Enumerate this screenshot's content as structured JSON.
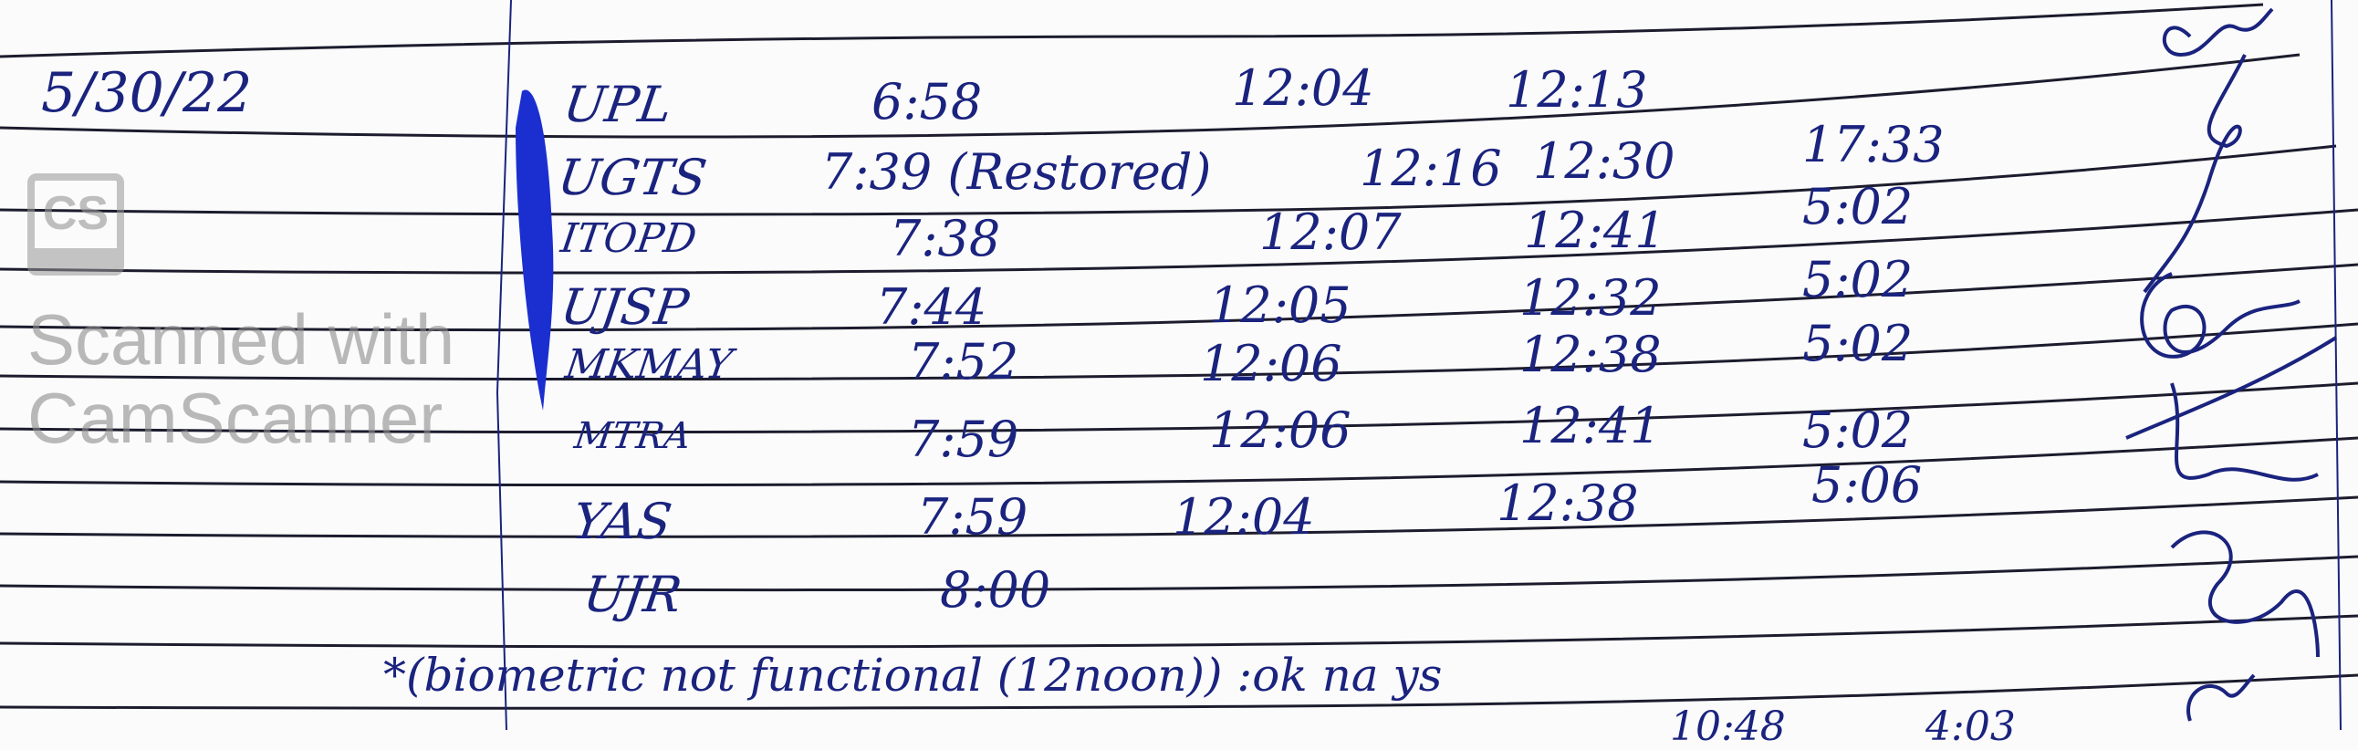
{
  "page": {
    "date": "5/30/22",
    "rows": [
      {
        "name": "UPL",
        "t1": "6:58",
        "t2": "12:04",
        "t3": "12:13",
        "t4": ""
      },
      {
        "name": "UGTS",
        "t1": "7:39 (Restored)",
        "t2": "12:16",
        "t3": "12:30",
        "t4": "17:33"
      },
      {
        "name": "ITOPD",
        "t1": "7:38",
        "t2": "12:07",
        "t3": "12:41",
        "t4": "5:02"
      },
      {
        "name": "UJSP",
        "t1": "7:44",
        "t2": "12:05",
        "t3": "12:32",
        "t4": "5:02"
      },
      {
        "name": "MKMAY",
        "t1": "7:52",
        "t2": "12:06",
        "t3": "12:38",
        "t4": "5:02"
      },
      {
        "name": "MTRA",
        "t1": "7:59",
        "t2": "12:06",
        "t3": "12:41",
        "t4": "5:02"
      },
      {
        "name": "YAS",
        "t1": "7:59",
        "t2": "12:04",
        "t3": "12:38",
        "t4": "5:06"
      },
      {
        "name": "UJR",
        "t1": "8:00",
        "t2": "",
        "t3": "",
        "t4": ""
      }
    ],
    "note": "*(biometric not functional (12noon)) :ok na ys",
    "bottom_partial": [
      "10:48",
      "4:03"
    ]
  },
  "watermark": {
    "logo": "CS",
    "text": "Scanned with CamScanner"
  },
  "colors": {
    "ink": "#1a237e",
    "highlighter": "#1b2fd0",
    "rule": "#1c1c2e"
  }
}
